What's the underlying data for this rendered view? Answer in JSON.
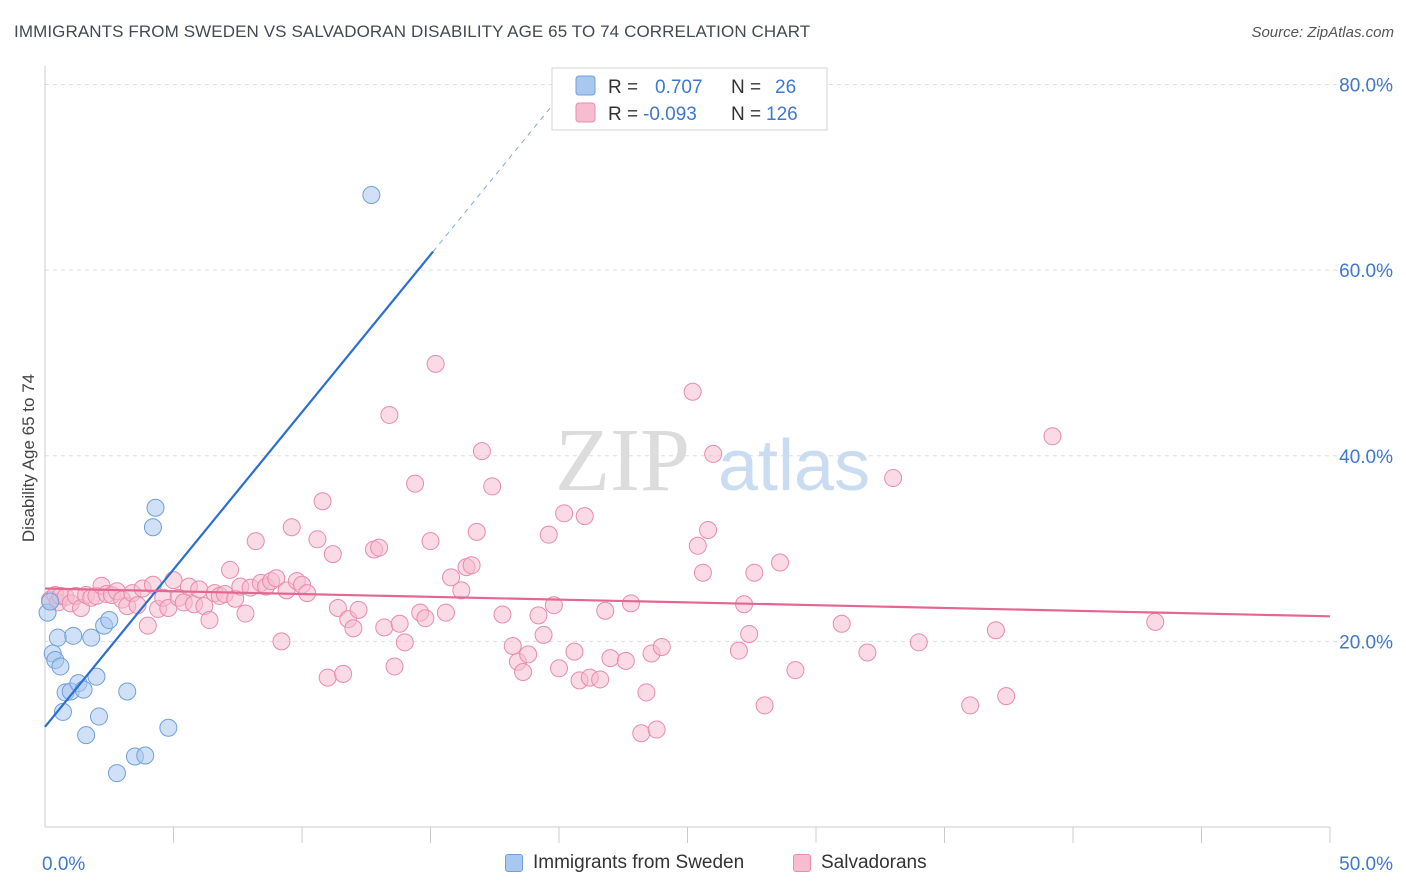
{
  "header": {
    "title": "IMMIGRANTS FROM SWEDEN VS SALVADORAN DISABILITY AGE 65 TO 74 CORRELATION CHART",
    "source": "Source: ZipAtlas.com"
  },
  "watermark": {
    "zip": "ZIP",
    "atlas": "atlas"
  },
  "colors": {
    "sweden_fill": "#a9c8f0",
    "sweden_stroke": "#6f9fdc",
    "sweden_line": "#2a6fd1",
    "salvadoran_fill": "#f6bcd0",
    "salvadoran_stroke": "#e98bac",
    "salvadoran_line": "#e2688f",
    "axis_text": "#3f78cf",
    "grid": "#dddddd"
  },
  "chart_data": {
    "type": "scatter",
    "xlabel": "",
    "ylabel": "Disability Age 65 to 74",
    "xlim": [
      0,
      50
    ],
    "ylim": [
      0,
      82
    ],
    "x_tick_labels": [
      {
        "value": 0,
        "label": "0.0%"
      },
      {
        "value": 50,
        "label": "50.0%"
      }
    ],
    "y_tick_labels": [
      {
        "value": 20,
        "label": "20.0%"
      },
      {
        "value": 40,
        "label": "40.0%"
      },
      {
        "value": 60,
        "label": "60.0%"
      },
      {
        "value": 80,
        "label": "80.0%"
      }
    ],
    "grid": "horizontal dashed",
    "legend_position": "top-center",
    "stats": [
      {
        "r_label": "R =",
        "r_value": "0.707",
        "n_label": "N =",
        "n_value": "26"
      },
      {
        "r_label": "R =",
        "r_value": "-0.093",
        "n_label": "N =",
        "n_value": "126"
      }
    ],
    "series": [
      {
        "name": "Immigrants from Sweden",
        "points": [
          [
            0.1,
            23.1
          ],
          [
            0.3,
            18.7
          ],
          [
            0.4,
            18.0
          ],
          [
            0.5,
            20.4
          ],
          [
            0.6,
            17.3
          ],
          [
            0.7,
            12.4
          ],
          [
            0.8,
            14.5
          ],
          [
            1.0,
            14.6
          ],
          [
            1.1,
            20.6
          ],
          [
            1.3,
            15.5
          ],
          [
            1.5,
            14.8
          ],
          [
            1.6,
            9.9
          ],
          [
            1.8,
            20.4
          ],
          [
            2.0,
            16.2
          ],
          [
            2.1,
            11.9
          ],
          [
            2.3,
            21.7
          ],
          [
            2.5,
            22.3
          ],
          [
            2.8,
            5.8
          ],
          [
            3.2,
            14.6
          ],
          [
            3.5,
            7.6
          ],
          [
            3.9,
            7.7
          ],
          [
            4.2,
            32.3
          ],
          [
            4.3,
            34.4
          ],
          [
            4.8,
            10.7
          ],
          [
            12.7,
            68.1
          ],
          [
            0.2,
            24.3
          ]
        ],
        "trend": {
          "x1": 0,
          "y1": 10.8,
          "x2": 15.1,
          "y2": 62.0,
          "dash_to_x": 20.4,
          "dash_to_y": 80.0
        }
      },
      {
        "name": "Salvadorans",
        "points": [
          [
            0.2,
            24.5
          ],
          [
            0.4,
            25.0
          ],
          [
            0.5,
            24.2
          ],
          [
            0.6,
            24.9
          ],
          [
            0.8,
            24.8
          ],
          [
            1.0,
            24.1
          ],
          [
            1.2,
            24.9
          ],
          [
            1.4,
            23.6
          ],
          [
            1.6,
            25.0
          ],
          [
            1.8,
            24.7
          ],
          [
            2.0,
            24.9
          ],
          [
            2.2,
            26.0
          ],
          [
            2.4,
            25.1
          ],
          [
            2.6,
            25.0
          ],
          [
            2.8,
            25.4
          ],
          [
            3.0,
            24.5
          ],
          [
            3.2,
            23.8
          ],
          [
            3.4,
            25.2
          ],
          [
            3.6,
            23.9
          ],
          [
            3.8,
            25.7
          ],
          [
            4.0,
            21.7
          ],
          [
            4.2,
            26.1
          ],
          [
            4.4,
            23.5
          ],
          [
            4.6,
            24.7
          ],
          [
            4.8,
            23.6
          ],
          [
            5.0,
            26.6
          ],
          [
            5.2,
            24.7
          ],
          [
            5.4,
            24.2
          ],
          [
            5.6,
            25.9
          ],
          [
            5.8,
            24.0
          ],
          [
            6.0,
            25.6
          ],
          [
            6.2,
            23.8
          ],
          [
            6.4,
            22.3
          ],
          [
            6.6,
            25.2
          ],
          [
            6.8,
            24.9
          ],
          [
            7.0,
            25.1
          ],
          [
            7.2,
            27.7
          ],
          [
            7.4,
            24.6
          ],
          [
            7.6,
            25.9
          ],
          [
            7.8,
            23.0
          ],
          [
            8.0,
            25.8
          ],
          [
            8.2,
            30.8
          ],
          [
            8.4,
            26.3
          ],
          [
            8.6,
            25.9
          ],
          [
            8.8,
            26.5
          ],
          [
            9.0,
            26.8
          ],
          [
            9.2,
            20.0
          ],
          [
            9.4,
            25.5
          ],
          [
            9.6,
            32.3
          ],
          [
            9.8,
            26.5
          ],
          [
            10.0,
            26.1
          ],
          [
            10.2,
            25.2
          ],
          [
            10.6,
            31.0
          ],
          [
            10.8,
            35.1
          ],
          [
            11.0,
            16.1
          ],
          [
            11.2,
            29.4
          ],
          [
            11.4,
            23.6
          ],
          [
            11.6,
            16.5
          ],
          [
            11.8,
            22.4
          ],
          [
            12.0,
            21.4
          ],
          [
            12.2,
            23.4
          ],
          [
            12.8,
            29.9
          ],
          [
            13.0,
            30.1
          ],
          [
            13.2,
            21.5
          ],
          [
            13.4,
            44.4
          ],
          [
            13.6,
            17.3
          ],
          [
            13.8,
            21.9
          ],
          [
            14.0,
            19.9
          ],
          [
            14.4,
            37.0
          ],
          [
            14.6,
            23.1
          ],
          [
            14.8,
            22.5
          ],
          [
            15.0,
            30.8
          ],
          [
            15.2,
            49.9
          ],
          [
            15.6,
            23.1
          ],
          [
            15.8,
            26.9
          ],
          [
            16.2,
            25.5
          ],
          [
            16.4,
            28.0
          ],
          [
            16.6,
            28.2
          ],
          [
            16.8,
            31.8
          ],
          [
            17.0,
            40.5
          ],
          [
            17.4,
            36.7
          ],
          [
            17.8,
            22.9
          ],
          [
            18.2,
            19.5
          ],
          [
            18.4,
            17.8
          ],
          [
            18.6,
            16.7
          ],
          [
            18.8,
            18.6
          ],
          [
            19.2,
            22.8
          ],
          [
            19.4,
            20.7
          ],
          [
            19.6,
            31.5
          ],
          [
            19.8,
            23.9
          ],
          [
            20.0,
            17.1
          ],
          [
            20.2,
            33.8
          ],
          [
            20.6,
            18.9
          ],
          [
            20.8,
            15.8
          ],
          [
            21.0,
            33.5
          ],
          [
            21.2,
            16.1
          ],
          [
            21.6,
            15.9
          ],
          [
            21.8,
            23.3
          ],
          [
            22.0,
            18.2
          ],
          [
            22.6,
            17.9
          ],
          [
            22.8,
            24.1
          ],
          [
            23.2,
            10.1
          ],
          [
            23.4,
            14.5
          ],
          [
            23.6,
            18.7
          ],
          [
            23.8,
            10.5
          ],
          [
            24.0,
            19.4
          ],
          [
            25.2,
            46.9
          ],
          [
            25.4,
            30.3
          ],
          [
            25.6,
            27.4
          ],
          [
            25.8,
            32.0
          ],
          [
            26.0,
            40.2
          ],
          [
            27.0,
            19.0
          ],
          [
            27.2,
            24.0
          ],
          [
            27.4,
            20.8
          ],
          [
            27.6,
            27.4
          ],
          [
            28.0,
            13.1
          ],
          [
            28.6,
            28.5
          ],
          [
            29.2,
            16.9
          ],
          [
            31.0,
            21.9
          ],
          [
            32.0,
            18.8
          ],
          [
            33.0,
            37.6
          ],
          [
            34.0,
            19.9
          ],
          [
            36.0,
            13.1
          ],
          [
            37.0,
            21.2
          ],
          [
            37.4,
            14.1
          ],
          [
            39.2,
            42.1
          ],
          [
            43.2,
            22.1
          ]
        ],
        "trend": {
          "x1": 0,
          "y1": 25.7,
          "x2": 50,
          "y2": 22.7
        }
      }
    ]
  },
  "legend_bottom": [
    {
      "label": "Immigrants from Sweden"
    },
    {
      "label": "Salvadorans"
    }
  ]
}
